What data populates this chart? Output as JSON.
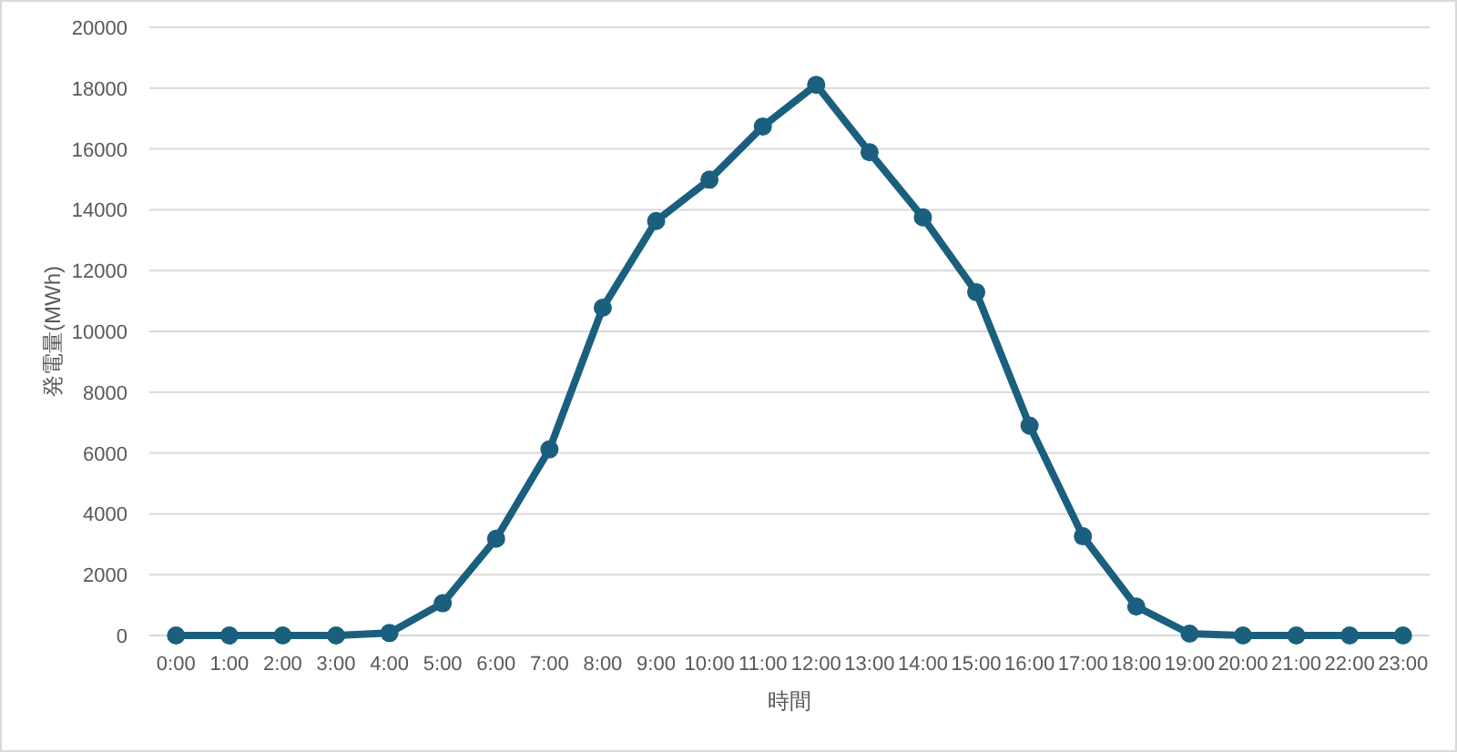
{
  "chart_data": {
    "type": "line",
    "xlabel": "時間",
    "ylabel": "発電量(MWh)",
    "categories": [
      "0:00",
      "1:00",
      "2:00",
      "3:00",
      "4:00",
      "5:00",
      "6:00",
      "7:00",
      "8:00",
      "9:00",
      "10:00",
      "11:00",
      "12:00",
      "13:00",
      "14:00",
      "15:00",
      "16:00",
      "17:00",
      "18:00",
      "19:00",
      "20:00",
      "21:00",
      "22:00",
      "23:00"
    ],
    "series": [
      {
        "color": "#1a5f7e",
        "values": [
          0,
          0,
          0,
          0,
          80,
          1060,
          3180,
          6120,
          10780,
          13630,
          14990,
          16740,
          18110,
          15890,
          13750,
          11290,
          6900,
          3260,
          950,
          60,
          0,
          0,
          0,
          0
        ]
      }
    ],
    "ylim": [
      0,
      20000
    ],
    "yticks": [
      0,
      2000,
      4000,
      6000,
      8000,
      10000,
      12000,
      14000,
      16000,
      18000,
      20000
    ],
    "grid": "y",
    "marker": "circle",
    "line_style": "solid"
  }
}
